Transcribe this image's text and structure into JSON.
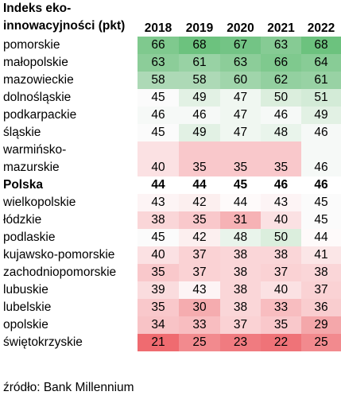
{
  "chart_data": {
    "type": "table",
    "title": "Indeks eko-innowacyjności (pkt)",
    "title_lines": [
      "Indeks eko-",
      "innowacyjności (pkt)"
    ],
    "columns": [
      "2018",
      "2019",
      "2020",
      "2021",
      "2022"
    ],
    "rows": [
      {
        "label": [
          "pomorskie"
        ],
        "values": [
          66,
          68,
          67,
          63,
          68
        ],
        "colors": [
          "#7fc98e",
          "#6cc27e",
          "#73c485",
          "#86cb94",
          "#6cc27e"
        ]
      },
      {
        "label": [
          "małopolskie"
        ],
        "values": [
          63,
          61,
          63,
          66,
          64
        ],
        "colors": [
          "#8ccd99",
          "#98d2a4",
          "#8ccd99",
          "#7fc98e",
          "#88cc96"
        ]
      },
      {
        "label": [
          "mazowieckie"
        ],
        "values": [
          58,
          58,
          60,
          62,
          61
        ],
        "colors": [
          "#add9b6",
          "#add9b6",
          "#a0d5ab",
          "#93d0a0",
          "#98d2a4"
        ]
      },
      {
        "label": [
          "dolnośląskie"
        ],
        "values": [
          45,
          49,
          47,
          50,
          51
        ],
        "colors": [
          "#fbfbfb",
          "#e2f1e4",
          "#f0f7f1",
          "#dbeedd",
          "#d3ebd7"
        ]
      },
      {
        "label": [
          "podkarpackie"
        ],
        "values": [
          46,
          46,
          47,
          46,
          49
        ],
        "colors": [
          "#f6f9f7",
          "#f6f9f7",
          "#f0f7f1",
          "#f6f9f7",
          "#e2f1e4"
        ]
      },
      {
        "label": [
          "śląskie"
        ],
        "values": [
          45,
          49,
          47,
          48,
          46
        ],
        "colors": [
          "#fbfbfb",
          "#e2f1e4",
          "#f0f7f1",
          "#e9f4eb",
          "#f6f9f7"
        ]
      },
      {
        "label": [
          "warmińsko-",
          "mazurskie"
        ],
        "values": [
          40,
          35,
          35,
          35,
          46
        ],
        "colors": [
          "#fbe1e3",
          "#f9c8cb",
          "#f9c8cb",
          "#f9c8cb",
          "#f6f9f7"
        ]
      },
      {
        "label": [
          "Polska"
        ],
        "values": [
          44,
          44,
          45,
          46,
          46
        ],
        "colors": [
          "#ffffff",
          "#ffffff",
          "#ffffff",
          "#ffffff",
          "#ffffff"
        ],
        "bold": true
      },
      {
        "label": [
          "wielkopolskie"
        ],
        "values": [
          43,
          42,
          44,
          43,
          45
        ],
        "colors": [
          "#fdf4f5",
          "#fcefef",
          "#fefafa",
          "#fdf4f5",
          "#fbfbfb"
        ]
      },
      {
        "label": [
          "łódzkie"
        ],
        "values": [
          38,
          35,
          31,
          40,
          45
        ],
        "colors": [
          "#fad6d8",
          "#f9c8cb",
          "#f6b2b5",
          "#fbe1e3",
          "#fbfbfb"
        ]
      },
      {
        "label": [
          "podlaskie"
        ],
        "values": [
          45,
          42,
          48,
          50,
          44
        ],
        "colors": [
          "#fbfbfb",
          "#fcefef",
          "#e9f4eb",
          "#dbeedd",
          "#fefafa"
        ]
      },
      {
        "label": [
          "kujawsko-pomorskie"
        ],
        "values": [
          40,
          37,
          38,
          38,
          41
        ],
        "colors": [
          "#fbe1e3",
          "#fad2d4",
          "#fad6d8",
          "#fad6d8",
          "#fbe6e7"
        ]
      },
      {
        "label": [
          "zachodniopomorskie"
        ],
        "values": [
          35,
          37,
          38,
          37,
          38
        ],
        "colors": [
          "#f9c8cb",
          "#fad2d4",
          "#fad6d8",
          "#fad2d4",
          "#fad6d8"
        ]
      },
      {
        "label": [
          "lubuskie"
        ],
        "values": [
          39,
          43,
          38,
          40,
          37
        ],
        "colors": [
          "#fadcde",
          "#fdf4f5",
          "#fad6d8",
          "#fbe1e3",
          "#fad2d4"
        ]
      },
      {
        "label": [
          "lubelskie"
        ],
        "values": [
          35,
          30,
          38,
          33,
          36
        ],
        "colors": [
          "#f9c8cb",
          "#f5acaf",
          "#fad6d8",
          "#f8bdc0",
          "#f9cdcf"
        ]
      },
      {
        "label": [
          "opolskie"
        ],
        "values": [
          34,
          33,
          37,
          35,
          29
        ],
        "colors": [
          "#f8c3c6",
          "#f8bdc0",
          "#fad2d4",
          "#f9c8cb",
          "#f4a7aa"
        ]
      },
      {
        "label": [
          "świętokrzyskie"
        ],
        "values": [
          21,
          25,
          23,
          22,
          25
        ],
        "colors": [
          "#ef6b70",
          "#f28a8e",
          "#f07b80",
          "#ef7378",
          "#f28a8e"
        ]
      }
    ],
    "source": "źródło: Bank Millennium"
  }
}
